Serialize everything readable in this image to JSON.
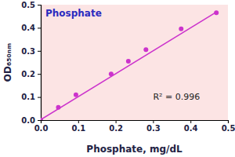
{
  "chart_data": {
    "type": "scatter",
    "title": "Phosphate",
    "x_label": "Phosphate, mg/dL",
    "y_label": "OD₆₅₀ₙₘ",
    "annotations": [
      {
        "text": "R² = 0.996"
      }
    ],
    "xlim": [
      0,
      0.5
    ],
    "ylim": [
      0,
      0.5
    ],
    "xticks": [
      {
        "value": 0,
        "label": "0.0"
      },
      0.1,
      0.2,
      0.3,
      0.4,
      0.5
    ],
    "yticks": [
      {
        "value": 0,
        "label": "0.0"
      },
      0.1,
      0.2,
      0.3,
      0.4,
      0.5
    ],
    "grid": false,
    "series": [
      {
        "type": "scatter",
        "marker": "circle",
        "color": "#cc33cc",
        "x": [
          0,
          0.047,
          0.094,
          0.188,
          0.234,
          0.281,
          0.375,
          0.469
        ],
        "values": [
          0,
          0.055,
          0.11,
          0.2,
          0.255,
          0.305,
          0.395,
          0.465
        ]
      },
      {
        "type": "line",
        "line_style": "solid",
        "color": "#cc33cc",
        "x": [
          0,
          0.469
        ],
        "values": [
          0.002,
          0.468
        ]
      }
    ]
  }
}
